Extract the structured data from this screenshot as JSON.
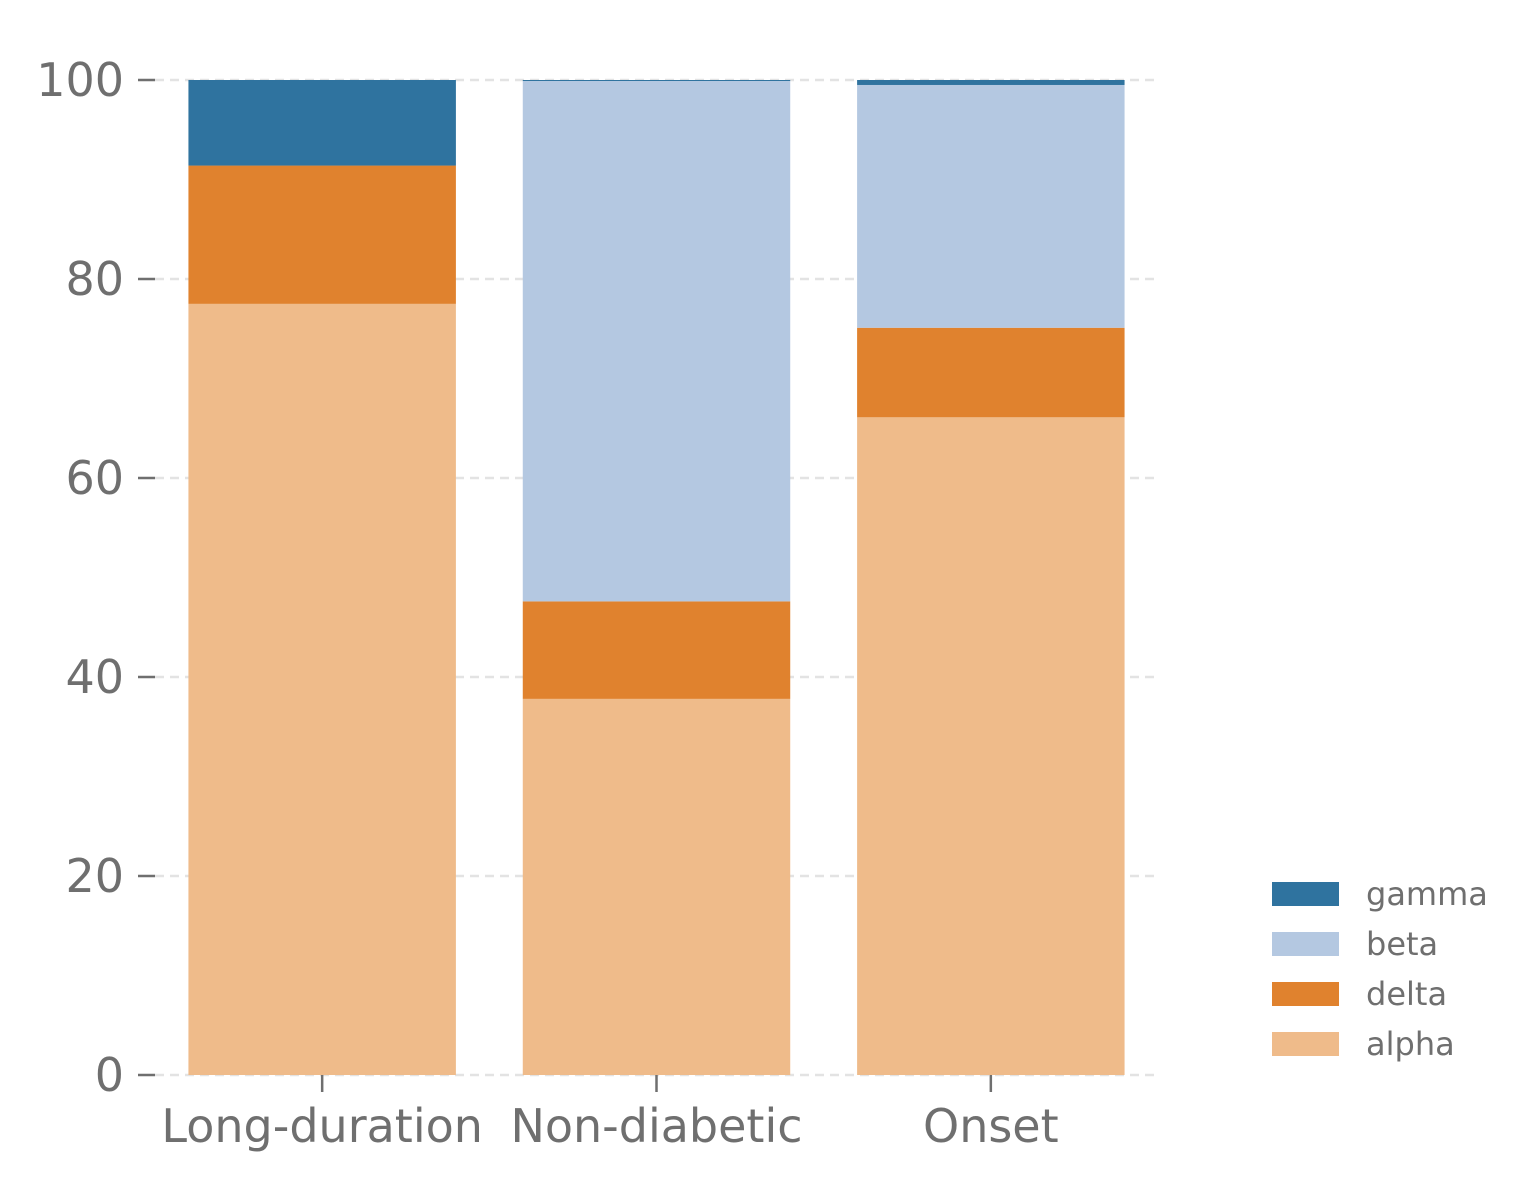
{
  "chart_data": {
    "type": "bar",
    "stacked": true,
    "title": "",
    "xlabel": "",
    "ylabel": "",
    "categories": [
      "Long-duration",
      "Non-diabetic",
      "Onset"
    ],
    "series": [
      {
        "name": "alpha",
        "color": "#efbb8a",
        "values": [
          77.5,
          37.8,
          66.1
        ]
      },
      {
        "name": "delta",
        "color": "#e0822e",
        "values": [
          13.9,
          9.8,
          9.0
        ]
      },
      {
        "name": "beta",
        "color": "#b4c8e1",
        "values": [
          0.0,
          52.3,
          24.4
        ]
      },
      {
        "name": "gamma",
        "color": "#2f739f",
        "values": [
          8.6,
          0.1,
          0.5
        ]
      }
    ],
    "legend_order": [
      "gamma",
      "beta",
      "delta",
      "alpha"
    ],
    "ylim": [
      0,
      100
    ],
    "yticks": [
      0,
      20,
      40,
      60,
      80,
      100
    ],
    "grid": true,
    "legend_position": "bottom-right"
  },
  "colors": {
    "text": "#6f6f6f",
    "grid": "#e3e3e3"
  }
}
